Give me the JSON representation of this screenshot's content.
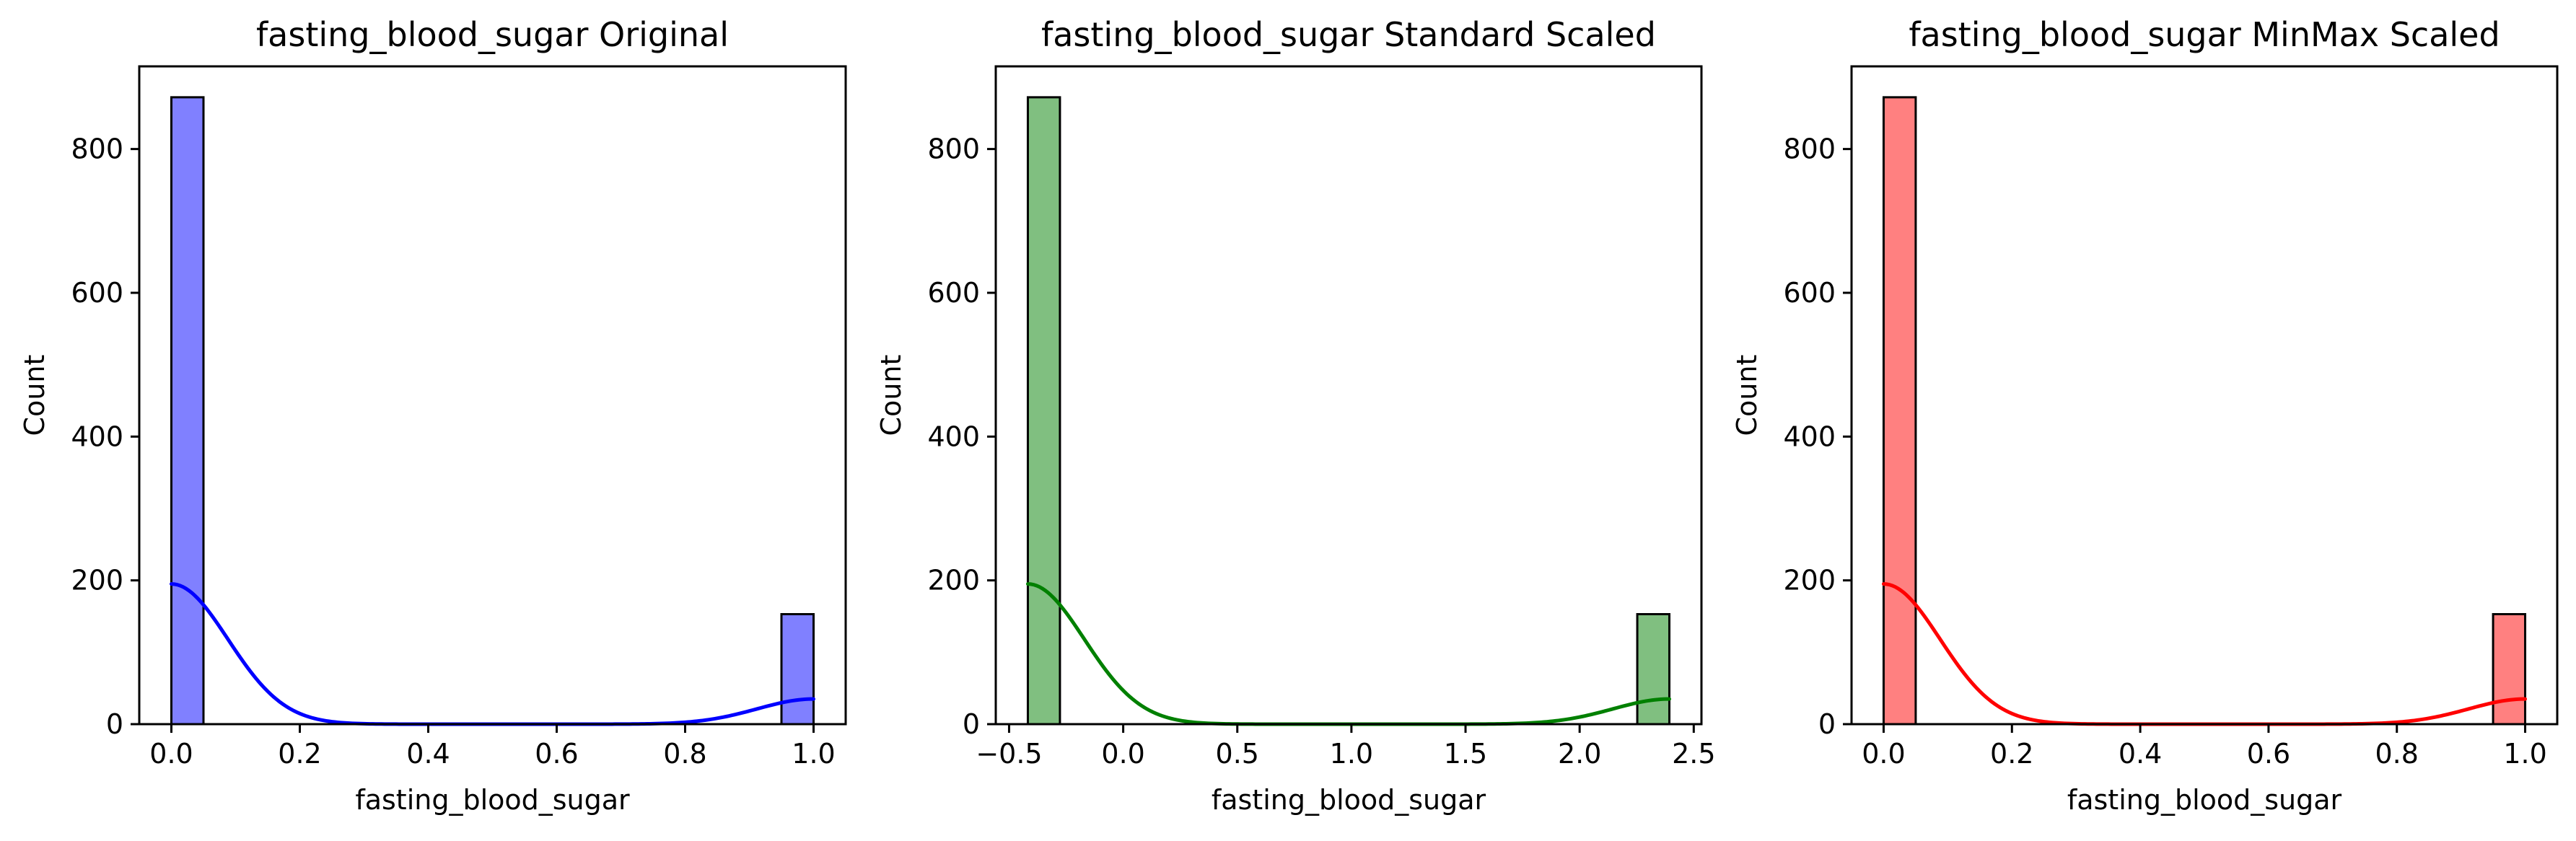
{
  "chart_data": [
    {
      "type": "histogram",
      "title": "fasting_blood_sugar Original",
      "xlabel": "fasting_blood_sugar",
      "ylabel": "Count",
      "color": "#0000ff",
      "bar_fill": "#8080ff",
      "bins": [
        {
          "x0": 0.0,
          "x1": 0.05,
          "count": 872
        },
        {
          "x0": 0.95,
          "x1": 1.0,
          "count": 153
        }
      ],
      "kde_peak": [
        195,
        35
      ],
      "xlim": [
        -0.05,
        1.05
      ],
      "ylim": [
        0,
        915
      ],
      "xticks": [
        0.0,
        0.2,
        0.4,
        0.6,
        0.8,
        1.0
      ],
      "xtick_labels": [
        "0.0",
        "0.2",
        "0.4",
        "0.6",
        "0.8",
        "1.0"
      ],
      "yticks": [
        0,
        200,
        400,
        600,
        800
      ],
      "ytick_labels": [
        "0",
        "200",
        "400",
        "600",
        "800"
      ],
      "grid": false
    },
    {
      "type": "histogram",
      "title": "fasting_blood_sugar Standard Scaled",
      "xlabel": "fasting_blood_sugar",
      "ylabel": "Count",
      "color": "#008000",
      "bar_fill": "#80bf80",
      "bins": [
        {
          "x0": -0.4178,
          "x1": -0.2772,
          "count": 872
        },
        {
          "x0": 2.2526,
          "x1": 2.3932,
          "count": 153
        }
      ],
      "kde_peak": [
        195,
        35
      ],
      "xlim": [
        -0.5584,
        2.5338
      ],
      "ylim": [
        0,
        915
      ],
      "xticks": [
        -0.5,
        0.0,
        0.5,
        1.0,
        1.5,
        2.0,
        2.5
      ],
      "xtick_labels": [
        "−0.5",
        "0.0",
        "0.5",
        "1.0",
        "1.5",
        "2.0",
        "2.5"
      ],
      "yticks": [
        0,
        200,
        400,
        600,
        800
      ],
      "ytick_labels": [
        "0",
        "200",
        "400",
        "600",
        "800"
      ],
      "grid": false
    },
    {
      "type": "histogram",
      "title": "fasting_blood_sugar MinMax Scaled",
      "xlabel": "fasting_blood_sugar",
      "ylabel": "Count",
      "color": "#ff0000",
      "bar_fill": "#ff8080",
      "bins": [
        {
          "x0": 0.0,
          "x1": 0.05,
          "count": 872
        },
        {
          "x0": 0.95,
          "x1": 1.0,
          "count": 153
        }
      ],
      "kde_peak": [
        195,
        35
      ],
      "xlim": [
        -0.05,
        1.05
      ],
      "ylim": [
        0,
        915
      ],
      "xticks": [
        0.0,
        0.2,
        0.4,
        0.6,
        0.8,
        1.0
      ],
      "xtick_labels": [
        "0.0",
        "0.2",
        "0.4",
        "0.6",
        "0.8",
        "1.0"
      ],
      "yticks": [
        0,
        200,
        400,
        600,
        800
      ],
      "ytick_labels": [
        "0",
        "200",
        "400",
        "600",
        "800"
      ],
      "grid": false
    }
  ]
}
